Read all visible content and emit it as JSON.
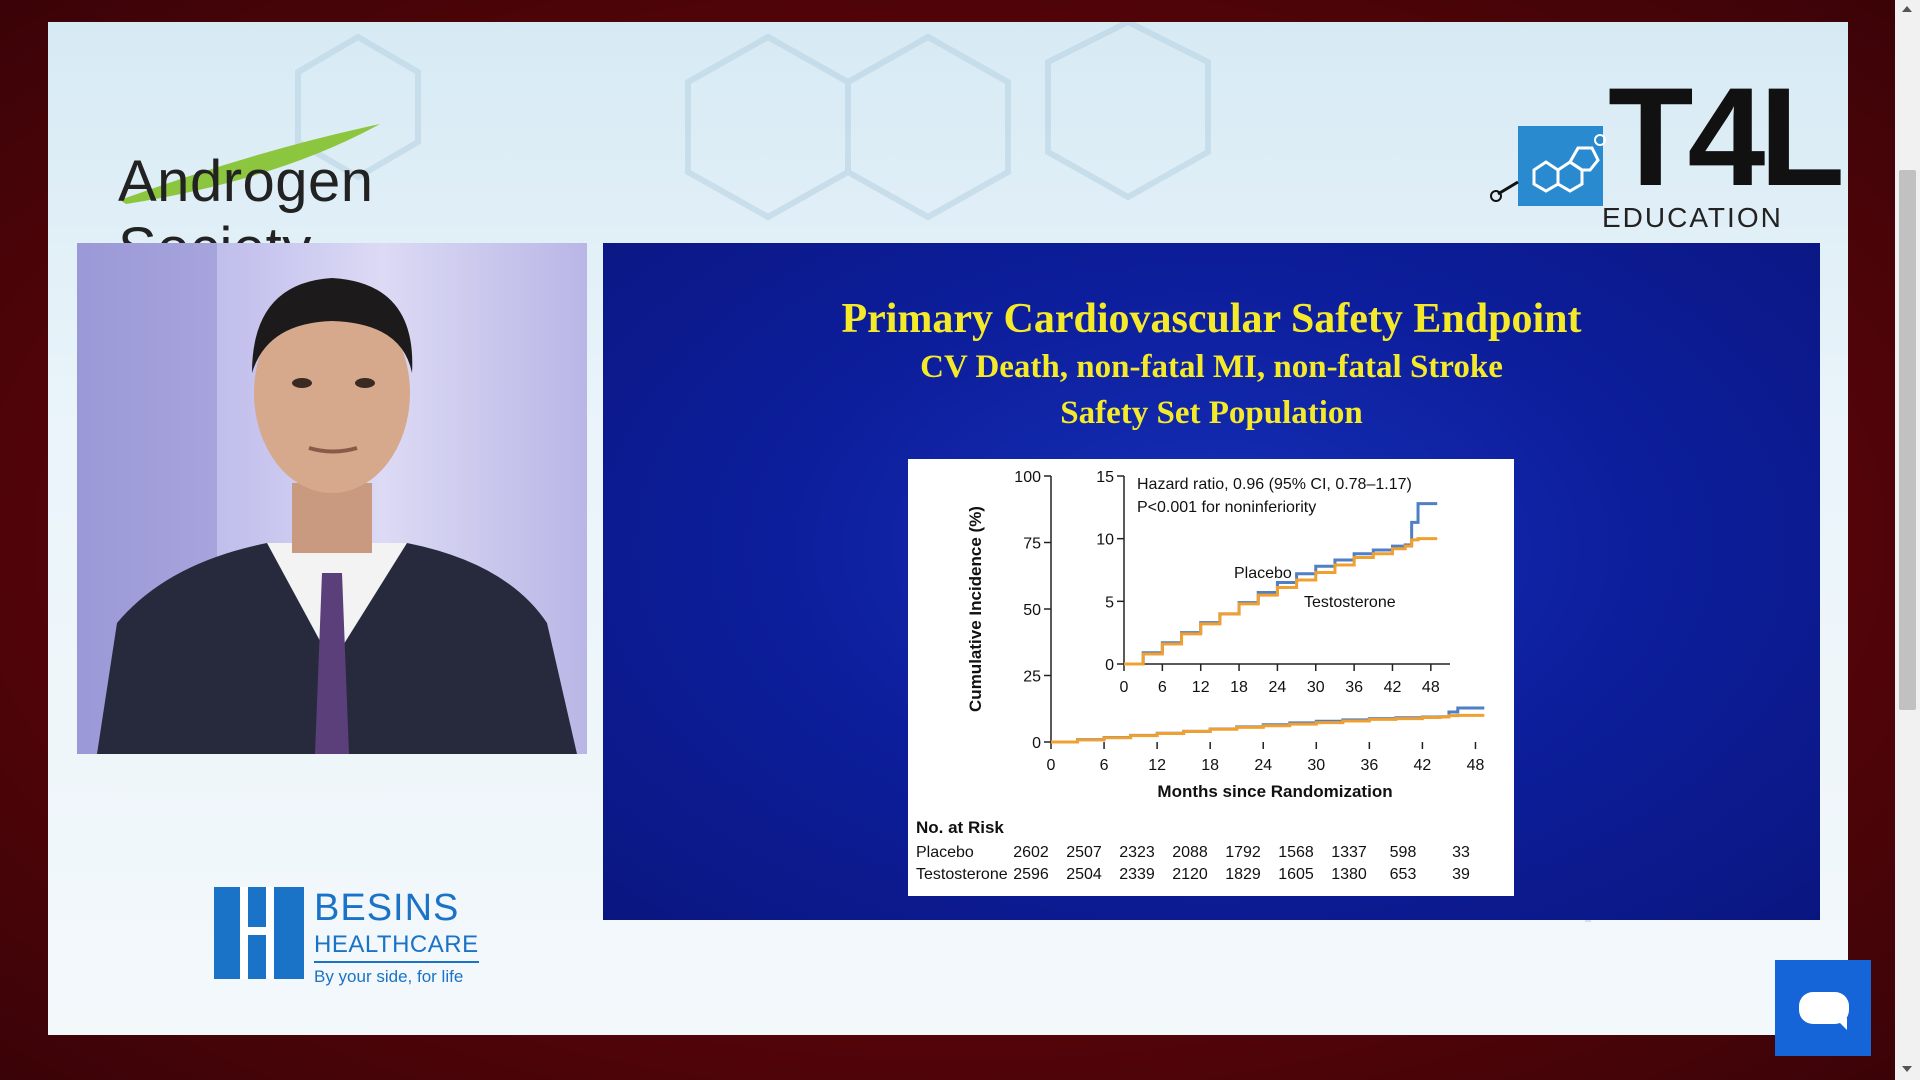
{
  "header": {
    "left_logo": "Androgen Society",
    "right_logo_main": "T4L",
    "right_logo_sub": "EDUCATION"
  },
  "sponsor": {
    "name": "BESINS",
    "sub": "HEALTHCARE",
    "tagline": "By your side, for life"
  },
  "slide": {
    "title": "Primary Cardiovascular Safety Endpoint",
    "subtitle1": "CV Death, non-fatal MI, non-fatal Stroke",
    "subtitle2": "Safety Set Population"
  },
  "chart_data": {
    "type": "line",
    "ylabel": "Cumulative Incidence (%)",
    "xlabel": "Months since Randomization",
    "x_ticks": [
      "0",
      "6",
      "12",
      "18",
      "24",
      "30",
      "36",
      "42",
      "48"
    ],
    "y_ticks": [
      "0",
      "25",
      "50",
      "75",
      "100"
    ],
    "ylim": [
      0,
      100
    ],
    "xlim": [
      0,
      51
    ],
    "inset": {
      "x_ticks": [
        "0",
        "6",
        "12",
        "18",
        "24",
        "30",
        "36",
        "42",
        "48"
      ],
      "y_ticks": [
        "0",
        "5",
        "10",
        "15"
      ],
      "ylim": [
        0,
        15
      ],
      "annotation_line1": "Hazard ratio, 0.96 (95% CI, 0.78–1.17)",
      "annotation_line2": "P<0.001 for noninferiority",
      "placebo_label": "Placebo",
      "testosterone_label": "Testosterone"
    },
    "series": [
      {
        "name": "Placebo",
        "color": "#4f7fc4",
        "x": [
          0,
          3,
          6,
          9,
          12,
          15,
          18,
          21,
          24,
          27,
          30,
          33,
          36,
          39,
          42,
          44,
          45,
          46,
          49
        ],
        "y": [
          0,
          0.9,
          1.7,
          2.5,
          3.3,
          4.0,
          4.9,
          5.7,
          6.5,
          7.2,
          7.8,
          8.3,
          8.8,
          9.1,
          9.4,
          9.5,
          11.3,
          12.8,
          12.8
        ]
      },
      {
        "name": "Testosterone",
        "color": "#f0a030",
        "x": [
          0,
          3,
          6,
          9,
          12,
          15,
          18,
          21,
          24,
          27,
          30,
          33,
          36,
          39,
          42,
          44,
          45,
          46,
          49
        ],
        "y": [
          0,
          0.8,
          1.6,
          2.4,
          3.2,
          4.0,
          4.8,
          5.5,
          6.1,
          6.7,
          7.3,
          7.9,
          8.5,
          8.8,
          9.2,
          9.4,
          9.9,
          10.0,
          10.0
        ]
      }
    ],
    "risk_table": {
      "header": "No. at Risk",
      "rows": [
        {
          "label": "Placebo",
          "values": [
            "2602",
            "2507",
            "2323",
            "2088",
            "1792",
            "1568",
            "1337",
            "598",
            "33"
          ]
        },
        {
          "label": "Testosterone",
          "values": [
            "2596",
            "2504",
            "2339",
            "2120",
            "1829",
            "1605",
            "1380",
            "653",
            "39"
          ]
        }
      ]
    }
  }
}
